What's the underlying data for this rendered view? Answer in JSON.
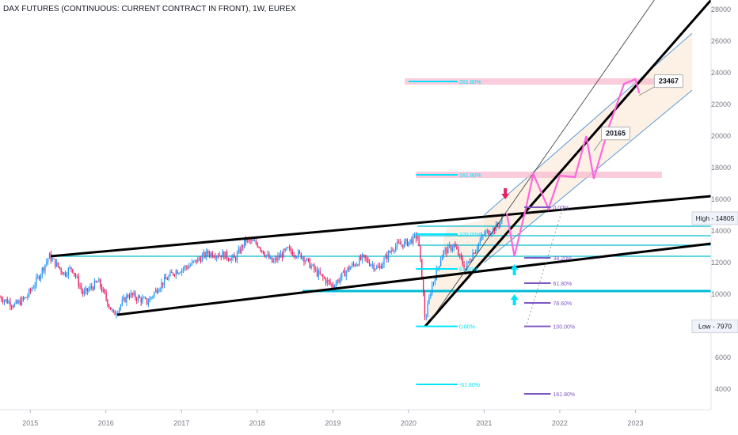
{
  "title": "DAX FUTURES (CONTINUOUS: CURRENT CONTRACT IN FRONT), 1W, EUREX",
  "chart_data": {
    "type": "candlestick",
    "y_axis": {
      "ticks": [
        4000,
        6000,
        8000,
        10000,
        12000,
        14000,
        16000,
        18000,
        20000,
        22000,
        24000,
        26000,
        28000
      ],
      "ylim": [
        2700,
        28600
      ],
      "position": "right"
    },
    "x_axis": {
      "ticks": [
        "2015",
        "2016",
        "2017",
        "2018",
        "2019",
        "2020",
        "2021",
        "2022",
        "2023"
      ],
      "xlim": [
        2014.6,
        2024.0
      ]
    },
    "price_path": [
      [
        2014.6,
        9800
      ],
      [
        2014.8,
        9300
      ],
      [
        2014.95,
        9800
      ],
      [
        2015.1,
        11000
      ],
      [
        2015.25,
        12400
      ],
      [
        2015.45,
        11300
      ],
      [
        2015.55,
        11700
      ],
      [
        2015.7,
        10000
      ],
      [
        2015.9,
        10800
      ],
      [
        2016.1,
        8700
      ],
      [
        2016.3,
        10000
      ],
      [
        2016.45,
        9700
      ],
      [
        2016.55,
        9500
      ],
      [
        2016.7,
        10500
      ],
      [
        2016.9,
        11400
      ],
      [
        2017.1,
        11800
      ],
      [
        2017.35,
        12600
      ],
      [
        2017.55,
        12500
      ],
      [
        2017.7,
        12200
      ],
      [
        2017.85,
        13400
      ],
      [
        2018.0,
        13200
      ],
      [
        2018.2,
        12000
      ],
      [
        2018.4,
        12800
      ],
      [
        2018.6,
        12400
      ],
      [
        2018.8,
        11300
      ],
      [
        2019.0,
        10500
      ],
      [
        2019.2,
        11600
      ],
      [
        2019.4,
        12300
      ],
      [
        2019.6,
        11600
      ],
      [
        2019.8,
        13000
      ],
      [
        2020.0,
        13300
      ],
      [
        2020.12,
        13700
      ],
      [
        2020.18,
        11000
      ],
      [
        2020.22,
        8300
      ],
      [
        2020.3,
        10400
      ],
      [
        2020.45,
        12600
      ],
      [
        2020.6,
        13100
      ],
      [
        2020.75,
        11600
      ],
      [
        2020.85,
        12600
      ],
      [
        2021.0,
        13800
      ],
      [
        2021.15,
        14200
      ],
      [
        2021.25,
        14805
      ]
    ],
    "high": {
      "label": "High",
      "value": 14805
    },
    "low": {
      "label": "Low",
      "value": 7970
    },
    "fib_extension": [
      {
        "label": "261.80%",
        "value": 23450
      },
      {
        "label": "161.80%",
        "value": 17550
      },
      {
        "label": "100.00%",
        "value": 13800
      },
      {
        "label": "61.80%",
        "value": 11600
      },
      {
        "label": "0.00%",
        "value": 7970
      },
      {
        "label": "-61.80%",
        "value": 4300
      }
    ],
    "fib_retracement": [
      {
        "label": "0.00%",
        "value": 15500
      },
      {
        "label": "38.20%",
        "value": 12300
      },
      {
        "label": "61.80%",
        "value": 10700
      },
      {
        "label": "78.60%",
        "value": 9450
      },
      {
        "label": "100.00%",
        "value": 7970
      },
      {
        "label": "161.80%",
        "value": 3700
      }
    ],
    "callouts": [
      {
        "label": "23467",
        "value": 23467
      },
      {
        "label": "20165",
        "value": 20165
      }
    ],
    "projection_path": [
      [
        2021.3,
        15100
      ],
      [
        2021.4,
        12400
      ],
      [
        2021.55,
        15400
      ],
      [
        2021.65,
        17600
      ],
      [
        2021.85,
        15400
      ],
      [
        2022.0,
        17500
      ],
      [
        2022.2,
        17400
      ],
      [
        2022.35,
        20000
      ],
      [
        2022.45,
        17300
      ],
      [
        2022.65,
        20600
      ],
      [
        2022.85,
        23300
      ],
      [
        2023.0,
        23600
      ],
      [
        2023.05,
        22700
      ]
    ],
    "markers": [
      {
        "type": "down-arrow",
        "color": "#e91e63",
        "x": 2021.28,
        "value": 16200
      },
      {
        "type": "up-arrow",
        "color": "#00e5ff",
        "x": 2021.4,
        "value": 11700
      },
      {
        "type": "up-arrow",
        "color": "#00e5ff",
        "x": 2021.4,
        "value": 9800
      }
    ],
    "trendlines": [
      {
        "color": "#000000",
        "points": [
          [
            2015.27,
            12400
          ],
          [
            2024.0,
            16200
          ]
        ]
      },
      {
        "color": "#000000",
        "points": [
          [
            2016.15,
            8700
          ],
          [
            2024.0,
            13200
          ]
        ]
      },
      {
        "color": "#000000",
        "points": [
          [
            2020.22,
            7970
          ],
          [
            2024.0,
            28600
          ]
        ]
      },
      {
        "color": "#333333",
        "points": [
          [
            2020.3,
            8400
          ],
          [
            2023.25,
            28600
          ]
        ]
      }
    ],
    "channel": {
      "upper": [
        [
          2021.0,
          15000
        ],
        [
          2023.75,
          26500
        ]
      ],
      "lower": [
        [
          2021.0,
          12000
        ],
        [
          2023.75,
          22900
        ]
      ],
      "color": "#5b9bd5"
    },
    "support_lines": [
      {
        "value": 12400,
        "start": 2015.27,
        "color": "#00bcd4"
      },
      {
        "value": 10200,
        "start": 2018.6,
        "color": "#00bcd4"
      },
      {
        "value": 14300,
        "start": 2020.12,
        "color": "#00bcd4"
      },
      {
        "value": 13700,
        "start": 2020.12,
        "color": "#00bcd4"
      },
      {
        "value": 13100,
        "start": 2020.12,
        "color": "#00bcd4"
      }
    ],
    "colors": {
      "up": "#2196f3",
      "down": "#e91e63",
      "fib_ext": "#00e5ff",
      "fib_ret": "#7e57c2",
      "projection": "#ff66dd",
      "zone": "#f8bbd0"
    }
  }
}
